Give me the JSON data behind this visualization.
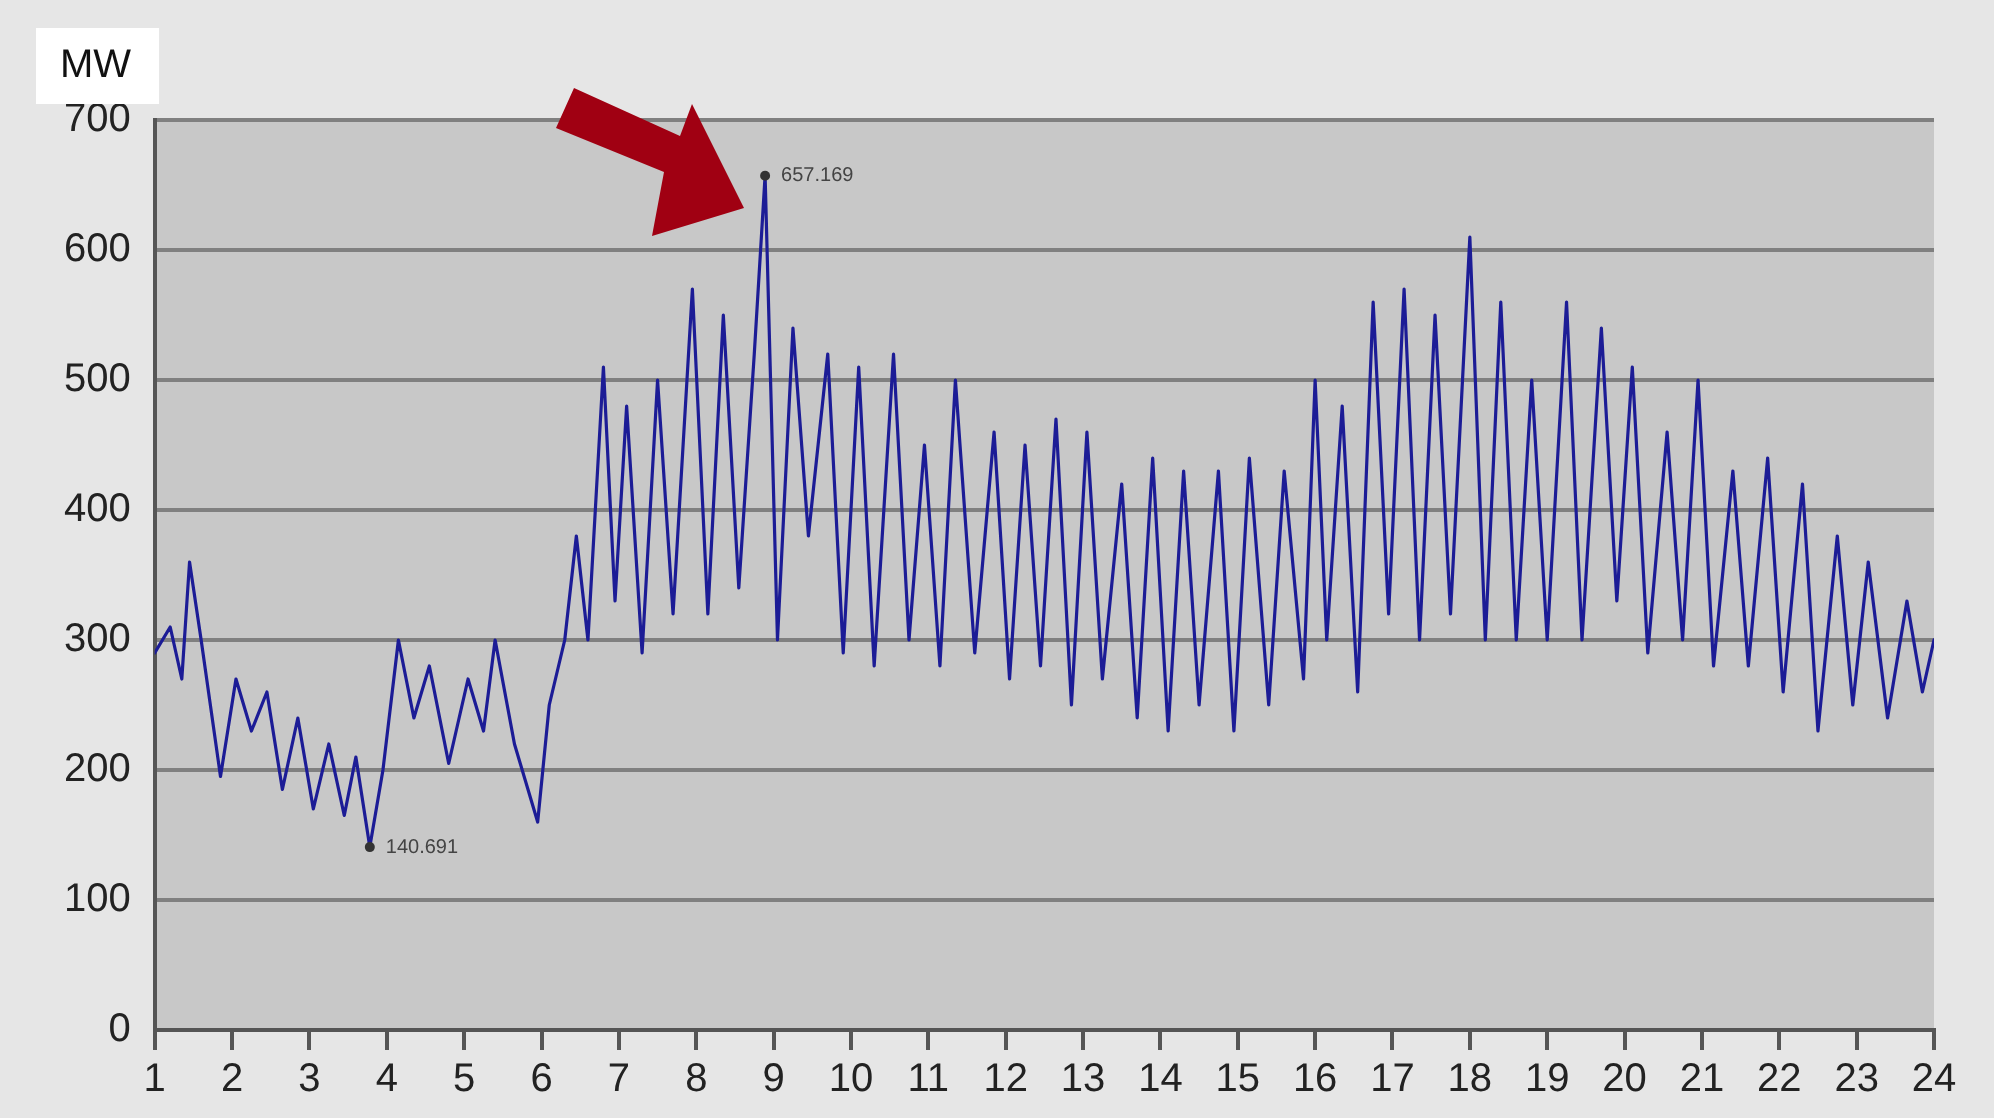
{
  "chart_data": {
    "type": "line",
    "ylabel": "MW",
    "x": [
      1,
      1.2,
      1.35,
      1.45,
      1.6,
      1.85,
      2.05,
      2.25,
      2.45,
      2.65,
      2.85,
      3.05,
      3.25,
      3.45,
      3.6,
      3.78,
      3.95,
      4.15,
      4.35,
      4.55,
      4.8,
      5.05,
      5.25,
      5.4,
      5.65,
      5.95,
      6.1,
      6.3,
      6.45,
      6.6,
      6.8,
      6.95,
      7.1,
      7.3,
      7.5,
      7.7,
      7.95,
      8.15,
      8.35,
      8.55,
      8.75,
      8.89,
      9.05,
      9.25,
      9.45,
      9.7,
      9.9,
      10.1,
      10.3,
      10.55,
      10.75,
      10.95,
      11.15,
      11.35,
      11.6,
      11.85,
      12.05,
      12.25,
      12.45,
      12.65,
      12.85,
      13.05,
      13.25,
      13.5,
      13.7,
      13.9,
      14.1,
      14.3,
      14.5,
      14.75,
      14.95,
      15.15,
      15.4,
      15.6,
      15.85,
      16,
      16.15,
      16.35,
      16.55,
      16.75,
      16.95,
      17.15,
      17.35,
      17.55,
      17.75,
      18,
      18.2,
      18.4,
      18.6,
      18.8,
      19,
      19.25,
      19.45,
      19.7,
      19.9,
      20.1,
      20.3,
      20.55,
      20.75,
      20.95,
      21.15,
      21.4,
      21.6,
      21.85,
      22.05,
      22.3,
      22.5,
      22.75,
      22.95,
      23.15,
      23.4,
      23.65,
      23.85,
      24
    ],
    "series": [
      {
        "color": "#1c1c96",
        "values": [
          290,
          310,
          270,
          360,
          300,
          195,
          270,
          230,
          260,
          185,
          240,
          170,
          220,
          165,
          210,
          140.691,
          200,
          300,
          240,
          280,
          205,
          270,
          230,
          300,
          220,
          160,
          250,
          300,
          380,
          300,
          510,
          330,
          480,
          290,
          500,
          320,
          570,
          320,
          550,
          340,
          520,
          657.169,
          300,
          540,
          380,
          520,
          290,
          510,
          280,
          520,
          300,
          450,
          280,
          500,
          290,
          460,
          270,
          450,
          280,
          470,
          250,
          460,
          270,
          420,
          240,
          440,
          230,
          430,
          250,
          430,
          230,
          440,
          250,
          430,
          270,
          500,
          300,
          480,
          260,
          560,
          320,
          570,
          300,
          550,
          320,
          610,
          300,
          560,
          300,
          500,
          300,
          560,
          300,
          540,
          330,
          510,
          290,
          460,
          300,
          500,
          280,
          430,
          280,
          440,
          260,
          420,
          230,
          380,
          250,
          360,
          240,
          330,
          260,
          300
        ]
      }
    ],
    "xlim": [
      1,
      24
    ],
    "xticks": [
      1,
      2,
      3,
      4,
      5,
      6,
      7,
      8,
      9,
      10,
      11,
      12,
      13,
      14,
      15,
      16,
      17,
      18,
      19,
      20,
      21,
      22,
      23,
      24
    ],
    "ylim": [
      0,
      700
    ],
    "yticks": [
      0,
      100,
      200,
      300,
      400,
      500,
      600,
      700
    ],
    "grid": "y",
    "annotations": [
      {
        "text": "657.169",
        "x": 8.89,
        "y": 657.169
      },
      {
        "text": "140.691",
        "x": 3.78,
        "y": 140.691
      }
    ]
  }
}
